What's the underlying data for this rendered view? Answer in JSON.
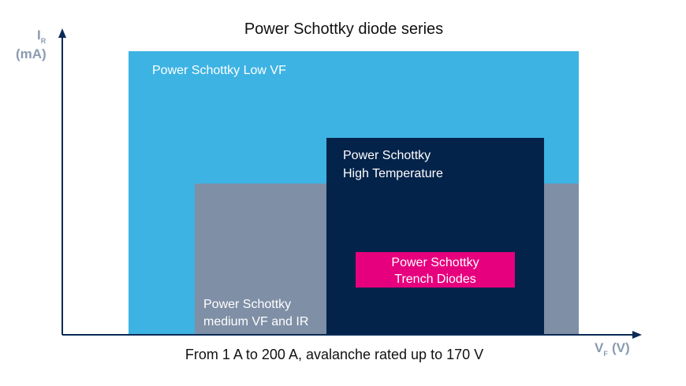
{
  "title": "Power Schottky diode series",
  "axes": {
    "y": {
      "symbol": "I",
      "subscript": "R",
      "unit": "(mA)"
    },
    "x": {
      "symbol": "V",
      "subscript": "F",
      "unit": "(V)"
    }
  },
  "regions": [
    {
      "lines": [
        "Power Schottky Low VF"
      ]
    },
    {
      "lines": [
        "Power Schottky",
        "medium VF and IR"
      ]
    },
    {
      "lines": [
        "Power Schottky",
        "High Temperature"
      ]
    },
    {
      "lines": [
        "Power Schottky",
        "Trench Diodes"
      ]
    }
  ],
  "caption": "From 1 A to 200 A,  avalanche rated up to 170 V"
}
